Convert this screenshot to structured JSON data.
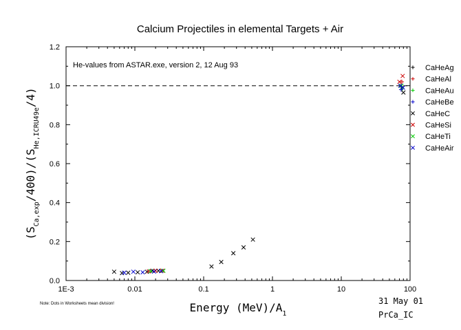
{
  "chart_data": {
    "type": "scatter",
    "title": "Calcium Projectiles in elemental Targets + Air",
    "annotation": "He-values from ASTAR.exe, version 2, 12 Aug 93",
    "footnote": "Note: Dots in Worksheets mean division!",
    "date_label": "31 May 01",
    "file_label": "PrCa_IC",
    "xlabel": {
      "main": "Energy (MeV)/A",
      "sub": "1"
    },
    "ylabel": {
      "p1": "(S",
      "s1": "Ca,exp",
      "p2": "/400)/(S",
      "s2": "He,ICRU49e",
      "p3": "/4)"
    },
    "xscale": "log",
    "xlim": [
      0.001,
      100
    ],
    "ylim": [
      0,
      1.2
    ],
    "xticks": [
      {
        "value": 0.001,
        "label": "1E-3"
      },
      {
        "value": 0.01,
        "label": "0.01"
      },
      {
        "value": 0.1,
        "label": "0.1"
      },
      {
        "value": 1,
        "label": "1"
      },
      {
        "value": 10,
        "label": "10"
      },
      {
        "value": 100,
        "label": "100"
      }
    ],
    "yticks": [
      {
        "value": 0.0,
        "label": "0.0"
      },
      {
        "value": 0.2,
        "label": "0.2"
      },
      {
        "value": 0.4,
        "label": "0.4"
      },
      {
        "value": 0.6,
        "label": "0.6"
      },
      {
        "value": 0.8,
        "label": "0.8"
      },
      {
        "value": 1.0,
        "label": "1.0"
      },
      {
        "value": 1.2,
        "label": "1.2"
      }
    ],
    "reference_line": {
      "y": 1.0,
      "style": "dashed"
    },
    "grid": false,
    "legend_position": "right",
    "series": [
      {
        "name": "CaHeAg",
        "marker": "plus",
        "color": "#000000",
        "points": [
          [
            75,
            0.995
          ]
        ]
      },
      {
        "name": "CaHeAl",
        "marker": "plus",
        "color": "#cc0000",
        "points": [
          [
            76,
            1.02
          ]
        ]
      },
      {
        "name": "CaHeAu",
        "marker": "plus",
        "color": "#00cc00",
        "points": [
          [
            77,
            0.985
          ]
        ]
      },
      {
        "name": "CaHeBe",
        "marker": "plus",
        "color": "#0000cc",
        "points": [
          [
            74,
            0.98
          ]
        ]
      },
      {
        "name": "CaHeC",
        "marker": "x",
        "color": "#000000",
        "points": [
          [
            0.005,
            0.045
          ],
          [
            0.0065,
            0.038
          ],
          [
            0.008,
            0.04
          ],
          [
            0.011,
            0.042
          ],
          [
            0.015,
            0.045
          ],
          [
            0.018,
            0.05
          ],
          [
            0.022,
            0.05
          ],
          [
            0.13,
            0.072
          ],
          [
            0.18,
            0.095
          ],
          [
            0.27,
            0.14
          ],
          [
            0.38,
            0.17
          ],
          [
            0.52,
            0.21
          ],
          [
            80,
            0.965
          ]
        ]
      },
      {
        "name": "CaHeSi",
        "marker": "x",
        "color": "#cc0000",
        "points": [
          [
            0.016,
            0.047
          ],
          [
            0.02,
            0.05
          ],
          [
            0.025,
            0.05
          ],
          [
            70,
            1.02
          ],
          [
            78,
            1.05
          ]
        ]
      },
      {
        "name": "CaHeTi",
        "marker": "x",
        "color": "#00cc00",
        "points": [
          [
            0.017,
            0.048
          ],
          [
            0.026,
            0.05
          ],
          [
            75,
            1.0
          ]
        ]
      },
      {
        "name": "CaHeAir",
        "marker": "x",
        "color": "#0000cc",
        "points": [
          [
            0.007,
            0.04
          ],
          [
            0.0095,
            0.045
          ],
          [
            0.013,
            0.042
          ],
          [
            0.019,
            0.046
          ],
          [
            0.024,
            0.048
          ],
          [
            72,
            1.0
          ],
          [
            79,
            0.99
          ]
        ]
      }
    ]
  }
}
